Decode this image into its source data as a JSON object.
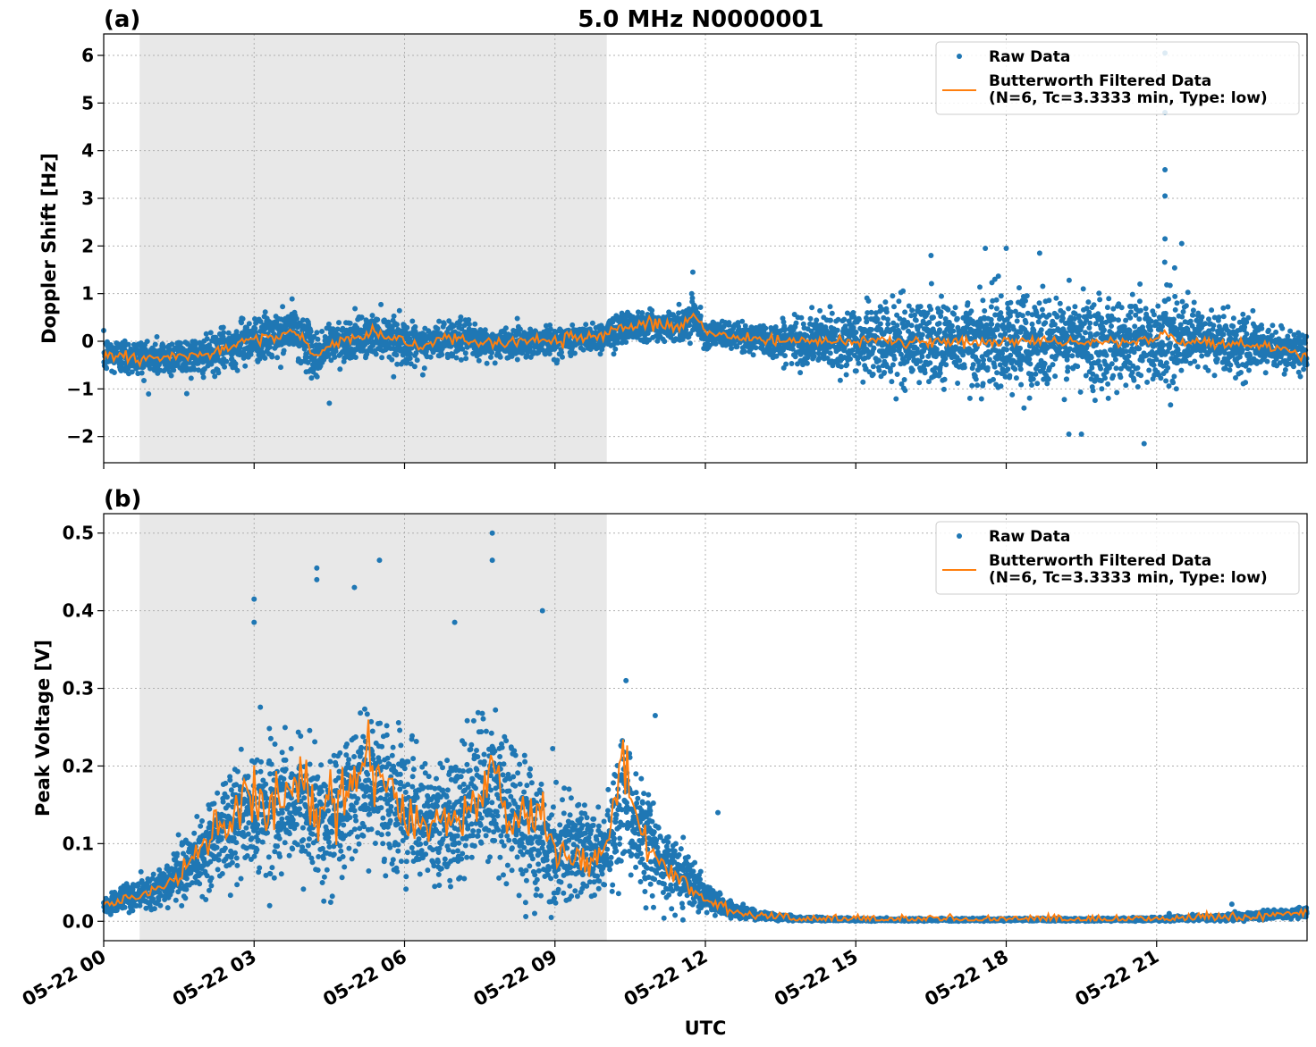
{
  "figure": {
    "title": "5.0 MHz N0000001",
    "xlabel": "UTC",
    "x_tick_labels": [
      "05-22 00",
      "05-22 03",
      "05-22 06",
      "05-22 09",
      "05-22 12",
      "05-22 15",
      "05-22 18",
      "05-22 21"
    ]
  },
  "chart_data": [
    {
      "type": "scatter",
      "panel_label": "(a)",
      "ylabel": "Doppler Shift [Hz]",
      "x_unit": "UTC",
      "xlim": [
        "05-22 00:00",
        "05-23 00:00"
      ],
      "ylim": [
        -2.55,
        6.45
      ],
      "y_ticks": [
        -2,
        -1,
        0,
        1,
        2,
        3,
        4,
        5,
        6
      ],
      "y_tick_labels": [
        "−2",
        "−1",
        "0",
        "1",
        "2",
        "3",
        "4",
        "5",
        "6"
      ],
      "grid": true,
      "legend_position": "top-right",
      "shaded_interval": [
        "05-22 00:43",
        "05-22 10:02"
      ],
      "series": [
        {
          "name": "Raw Data",
          "kind": "scatter",
          "color": "#1f77b4",
          "x": [
            "00:00",
            "00:30",
            "01:00",
            "01:30",
            "02:00",
            "02:30",
            "02:45",
            "03:00",
            "03:30",
            "03:45",
            "04:00",
            "04:15",
            "04:30",
            "05:00",
            "05:30",
            "06:00",
            "06:15",
            "06:30",
            "07:00",
            "07:30",
            "08:00",
            "08:30",
            "09:00",
            "09:30",
            "10:00",
            "10:15",
            "10:30",
            "11:00",
            "11:30",
            "11:45",
            "12:00",
            "12:30",
            "13:00",
            "13:30",
            "14:00",
            "14:30",
            "15:00",
            "15:30",
            "16:00",
            "16:30",
            "17:00",
            "17:30",
            "18:00",
            "18:30",
            "19:00",
            "19:30",
            "20:00",
            "20:30",
            "21:00",
            "21:10",
            "21:20",
            "21:30",
            "22:00",
            "22:30",
            "23:00",
            "23:30",
            "23:59"
          ],
          "center": [
            -0.3,
            -0.32,
            -0.35,
            -0.3,
            -0.32,
            -0.15,
            0.0,
            0.05,
            0.1,
            0.25,
            0.0,
            -0.35,
            -0.05,
            0.05,
            0.15,
            0.0,
            -0.15,
            -0.05,
            0.1,
            -0.05,
            -0.05,
            0.0,
            0.0,
            0.05,
            0.1,
            0.25,
            0.35,
            0.35,
            0.3,
            0.6,
            0.15,
            0.1,
            0.05,
            0.0,
            0.0,
            0.0,
            0.0,
            0.0,
            0.0,
            0.0,
            0.0,
            0.0,
            0.0,
            0.0,
            0.0,
            0.0,
            0.0,
            0.0,
            0.0,
            0.2,
            0.05,
            0.0,
            0.0,
            -0.05,
            -0.1,
            -0.15,
            -0.3
          ],
          "spread": [
            0.45,
            0.45,
            0.45,
            0.45,
            0.45,
            0.5,
            0.55,
            0.55,
            0.55,
            0.55,
            0.55,
            0.6,
            0.5,
            0.5,
            0.5,
            0.5,
            0.5,
            0.45,
            0.45,
            0.4,
            0.35,
            0.35,
            0.35,
            0.35,
            0.35,
            0.45,
            0.4,
            0.35,
            0.35,
            0.45,
            0.3,
            0.3,
            0.35,
            0.45,
            0.55,
            0.7,
            0.8,
            0.9,
            1.0,
            1.0,
            1.05,
            1.1,
            1.15,
            1.15,
            1.1,
            1.1,
            1.1,
            1.1,
            1.1,
            1.2,
            1.0,
            0.9,
            0.8,
            0.7,
            0.55,
            0.5,
            0.45
          ],
          "outliers": [
            {
              "x": "21:10",
              "y": 6.05
            },
            {
              "x": "21:10",
              "y": 4.8
            },
            {
              "x": "21:10",
              "y": 3.6
            },
            {
              "x": "21:10",
              "y": 3.05
            },
            {
              "x": "21:10",
              "y": 2.15
            },
            {
              "x": "21:30",
              "y": 2.05
            },
            {
              "x": "20:45",
              "y": -2.15
            },
            {
              "x": "17:35",
              "y": 1.95
            },
            {
              "x": "18:00",
              "y": 1.95
            },
            {
              "x": "18:40",
              "y": 1.85
            },
            {
              "x": "19:15",
              "y": -1.95
            },
            {
              "x": "19:30",
              "y": -1.95
            },
            {
              "x": "16:30",
              "y": 1.8
            },
            {
              "x": "04:30",
              "y": -1.3
            },
            {
              "x": "11:45",
              "y": 1.45
            }
          ]
        },
        {
          "name": "Butterworth Filtered Data\n(N=6, Tc=3.3333 min, Type: low)",
          "kind": "line",
          "color": "#ff7f0e",
          "x": [
            "00:00",
            "00:30",
            "01:00",
            "01:30",
            "02:00",
            "02:30",
            "02:45",
            "03:00",
            "03:30",
            "03:45",
            "04:00",
            "04:15",
            "04:30",
            "05:00",
            "05:30",
            "06:00",
            "06:15",
            "06:30",
            "07:00",
            "07:30",
            "08:00",
            "08:30",
            "09:00",
            "09:30",
            "10:00",
            "10:15",
            "10:30",
            "11:00",
            "11:30",
            "11:45",
            "12:00",
            "12:30",
            "13:00",
            "13:30",
            "14:00",
            "14:30",
            "15:00",
            "15:30",
            "16:00",
            "16:30",
            "17:00",
            "17:30",
            "18:00",
            "18:30",
            "19:00",
            "19:30",
            "20:00",
            "20:30",
            "21:00",
            "21:10",
            "21:20",
            "21:30",
            "22:00",
            "22:30",
            "23:00",
            "23:30",
            "23:59"
          ],
          "y": [
            -0.3,
            -0.32,
            -0.35,
            -0.3,
            -0.32,
            -0.15,
            0.0,
            0.05,
            0.1,
            0.25,
            0.0,
            -0.35,
            -0.05,
            0.05,
            0.15,
            0.0,
            -0.15,
            -0.05,
            0.1,
            -0.05,
            -0.05,
            0.0,
            0.0,
            0.05,
            0.1,
            0.25,
            0.35,
            0.35,
            0.3,
            0.6,
            0.15,
            0.1,
            0.05,
            0.0,
            0.0,
            0.0,
            0.0,
            0.0,
            0.0,
            0.0,
            0.0,
            0.0,
            0.0,
            0.0,
            0.0,
            0.0,
            0.0,
            0.0,
            0.0,
            0.2,
            0.05,
            0.0,
            0.0,
            -0.05,
            -0.1,
            -0.15,
            -0.3
          ]
        }
      ]
    },
    {
      "type": "scatter",
      "panel_label": "(b)",
      "ylabel": "Peak Voltage [V]",
      "x_unit": "UTC",
      "xlim": [
        "05-22 00:00",
        "05-23 00:00"
      ],
      "ylim": [
        -0.025,
        0.525
      ],
      "y_ticks": [
        0.0,
        0.1,
        0.2,
        0.3,
        0.4,
        0.5
      ],
      "y_tick_labels": [
        "0.0",
        "0.1",
        "0.2",
        "0.3",
        "0.4",
        "0.5"
      ],
      "grid": true,
      "legend_position": "top-right",
      "shaded_interval": [
        "05-22 00:43",
        "05-22 10:02"
      ],
      "series": [
        {
          "name": "Raw Data",
          "kind": "scatter",
          "color": "#1f77b4",
          "x": [
            "00:00",
            "00:30",
            "01:00",
            "01:30",
            "02:00",
            "02:30",
            "03:00",
            "03:30",
            "04:00",
            "04:30",
            "05:00",
            "05:30",
            "06:00",
            "06:30",
            "07:00",
            "07:30",
            "08:00",
            "08:30",
            "09:00",
            "09:30",
            "10:00",
            "10:20",
            "10:40",
            "11:00",
            "11:30",
            "12:00",
            "12:30",
            "13:00",
            "13:30",
            "14:00",
            "15:00",
            "16:00",
            "17:00",
            "18:00",
            "19:00",
            "20:00",
            "21:00",
            "22:00",
            "23:00",
            "23:59"
          ],
          "center": [
            0.02,
            0.03,
            0.04,
            0.06,
            0.09,
            0.12,
            0.14,
            0.15,
            0.15,
            0.13,
            0.17,
            0.18,
            0.15,
            0.12,
            0.13,
            0.16,
            0.16,
            0.12,
            0.09,
            0.09,
            0.09,
            0.16,
            0.12,
            0.09,
            0.06,
            0.03,
            0.015,
            0.008,
            0.005,
            0.003,
            0.002,
            0.002,
            0.002,
            0.002,
            0.002,
            0.002,
            0.003,
            0.004,
            0.007,
            0.012
          ],
          "spread": [
            0.015,
            0.02,
            0.025,
            0.04,
            0.06,
            0.08,
            0.09,
            0.09,
            0.09,
            0.09,
            0.1,
            0.11,
            0.1,
            0.09,
            0.1,
            0.11,
            0.11,
            0.1,
            0.08,
            0.07,
            0.07,
            0.09,
            0.07,
            0.06,
            0.05,
            0.025,
            0.012,
            0.007,
            0.004,
            0.003,
            0.002,
            0.002,
            0.002,
            0.002,
            0.002,
            0.002,
            0.003,
            0.004,
            0.006,
            0.008
          ],
          "outliers": [
            {
              "x": "07:45",
              "y": 0.5
            },
            {
              "x": "07:45",
              "y": 0.465
            },
            {
              "x": "05:30",
              "y": 0.465
            },
            {
              "x": "04:15",
              "y": 0.455
            },
            {
              "x": "04:15",
              "y": 0.44
            },
            {
              "x": "05:00",
              "y": 0.43
            },
            {
              "x": "03:00",
              "y": 0.415
            },
            {
              "x": "08:45",
              "y": 0.4
            },
            {
              "x": "03:00",
              "y": 0.385
            },
            {
              "x": "07:00",
              "y": 0.385
            },
            {
              "x": "10:25",
              "y": 0.31
            },
            {
              "x": "11:00",
              "y": 0.265
            },
            {
              "x": "12:15",
              "y": 0.14
            },
            {
              "x": "22:30",
              "y": 0.022
            },
            {
              "x": "21:15",
              "y": 0.01
            }
          ]
        },
        {
          "name": "Butterworth Filtered Data\n(N=6, Tc=3.3333 min, Type: low)",
          "kind": "line",
          "color": "#ff7f0e",
          "x": [
            "00:00",
            "00:30",
            "01:00",
            "01:30",
            "02:00",
            "02:30",
            "03:00",
            "03:15",
            "03:30",
            "04:00",
            "04:15",
            "04:30",
            "05:00",
            "05:20",
            "05:40",
            "06:00",
            "06:30",
            "07:00",
            "07:30",
            "07:45",
            "08:00",
            "08:30",
            "08:45",
            "09:00",
            "09:30",
            "10:00",
            "10:20",
            "10:40",
            "11:00",
            "11:30",
            "12:00",
            "12:30",
            "13:00",
            "13:30",
            "14:00",
            "15:00",
            "16:00",
            "17:00",
            "18:00",
            "19:00",
            "20:00",
            "21:00",
            "22:00",
            "23:00",
            "23:59"
          ],
          "y": [
            0.02,
            0.03,
            0.04,
            0.06,
            0.1,
            0.13,
            0.18,
            0.14,
            0.17,
            0.19,
            0.13,
            0.16,
            0.18,
            0.23,
            0.17,
            0.14,
            0.12,
            0.13,
            0.16,
            0.2,
            0.15,
            0.12,
            0.14,
            0.09,
            0.08,
            0.09,
            0.21,
            0.12,
            0.09,
            0.05,
            0.03,
            0.015,
            0.008,
            0.005,
            0.003,
            0.002,
            0.002,
            0.002,
            0.002,
            0.002,
            0.002,
            0.003,
            0.004,
            0.007,
            0.012
          ]
        }
      ]
    }
  ]
}
